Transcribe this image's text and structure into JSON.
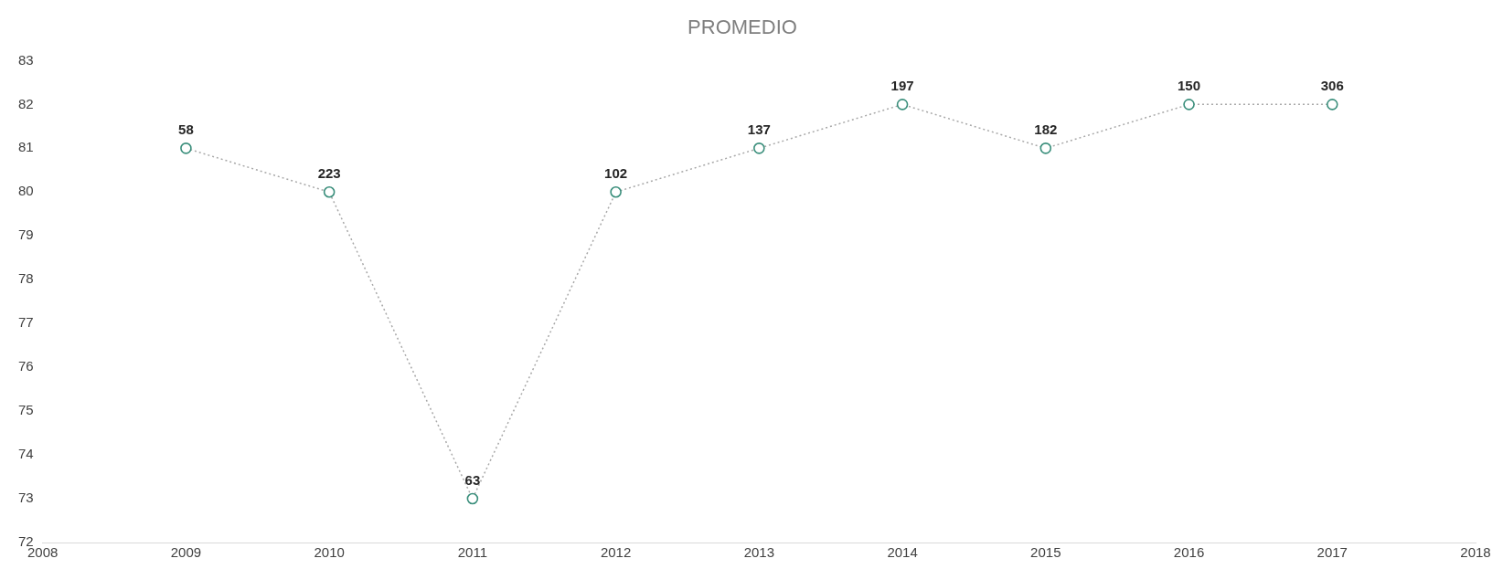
{
  "chart_data": {
    "type": "line",
    "title": "PROMEDIO",
    "x": [
      2009,
      2010,
      2011,
      2012,
      2013,
      2014,
      2015,
      2016,
      2017
    ],
    "series": [
      {
        "color": "#3b8f7c",
        "values": [
          81,
          80,
          73,
          80,
          81,
          82,
          81,
          82,
          82
        ]
      }
    ],
    "annotations": [
      {
        "text": "58",
        "x": 2009,
        "y": 81
      },
      {
        "text": "223",
        "x": 2010,
        "y": 80
      },
      {
        "text": "63",
        "x": 2011,
        "y": 73
      },
      {
        "text": "102",
        "x": 2012,
        "y": 80
      },
      {
        "text": "137",
        "x": 2013,
        "y": 81
      },
      {
        "text": "197",
        "x": 2014,
        "y": 82
      },
      {
        "text": "182",
        "x": 2015,
        "y": 81
      },
      {
        "text": "150",
        "x": 2016,
        "y": 82
      },
      {
        "text": "306",
        "x": 2017,
        "y": 82
      }
    ],
    "xlim": [
      2008,
      2018
    ],
    "xticks": [
      2008,
      2009,
      2010,
      2011,
      2012,
      2013,
      2014,
      2015,
      2016,
      2017,
      2018
    ],
    "ylim": [
      72,
      83
    ],
    "yticks": [
      72,
      73,
      74,
      75,
      76,
      77,
      78,
      79,
      80,
      81,
      82,
      83
    ],
    "grid": false,
    "legend": false,
    "marker": "circle",
    "line_style": "dotted"
  }
}
